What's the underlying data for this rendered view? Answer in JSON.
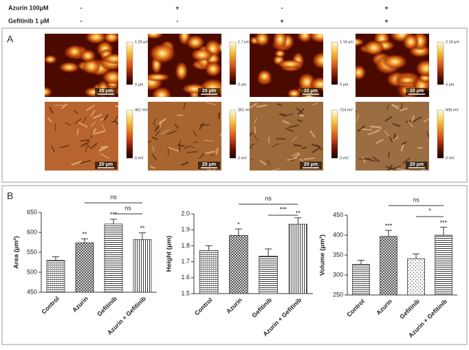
{
  "panel_a": {
    "label": "A",
    "treatments": [
      {
        "name": "Azurin 100μM",
        "signs": [
          "-",
          "+",
          "-",
          "+"
        ]
      },
      {
        "name": "Gefitinib 1 μM",
        "signs": [
          "-",
          "-",
          "+",
          "+"
        ]
      }
    ],
    "height_images": [
      {
        "max": "1.26 μm",
        "min": "0 μm",
        "scale": "20 μm"
      },
      {
        "max": "1.7 μm",
        "min": "0 μm",
        "scale": "20 μm"
      },
      {
        "max": "1.14 μm",
        "min": "0 μm",
        "scale": "20 μm"
      },
      {
        "max": "2.14 μm",
        "min": "0 μm",
        "scale": "20 μm"
      }
    ],
    "amplitude_images": [
      {
        "max": "461 mV",
        "min": "0 mV",
        "scale": "20 μm"
      },
      {
        "max": "261 mV",
        "min": "0 mV",
        "scale": "20 μm"
      },
      {
        "max": "724 mV",
        "min": "0 mV",
        "scale": "20 μm"
      },
      {
        "max": "608 mV",
        "min": "0 mV",
        "scale": "20 μm"
      }
    ]
  },
  "panel_b": {
    "label": "B"
  },
  "chart_data": [
    {
      "type": "bar",
      "ylabel": "Area (μm²)",
      "categories": [
        "Control",
        "Azurin",
        "Gefitinib",
        "Azurin + Gefitinib"
      ],
      "values": [
        530,
        574,
        621,
        582
      ],
      "errors": [
        9,
        10,
        12,
        17
      ],
      "significance": [
        null,
        "**",
        "***",
        "**"
      ],
      "comparisons": [
        {
          "between": [
            "Azurin",
            "Azurin + Gefitinib"
          ],
          "label": "ns"
        },
        {
          "between": [
            "Gefitinib",
            "Azurin + Gefitinib"
          ],
          "label": "ns"
        }
      ],
      "ylim": [
        450,
        650
      ],
      "yticks": [
        450,
        500,
        550,
        600,
        650
      ]
    },
    {
      "type": "bar",
      "ylabel": "Height (μm)",
      "categories": [
        "Control",
        "Azurin",
        "Gefitinib",
        "Azurin + Gefitinib"
      ],
      "values": [
        1.77,
        1.865,
        1.735,
        1.935
      ],
      "errors": [
        0.03,
        0.04,
        0.045,
        0.04
      ],
      "significance": [
        null,
        "*",
        null,
        "**"
      ],
      "comparisons": [
        {
          "between": [
            "Azurin",
            "Azurin + Gefitinib"
          ],
          "label": "ns"
        },
        {
          "between": [
            "Gefitinib",
            "Azurin + Gefitinib"
          ],
          "label": "***"
        }
      ],
      "ylim": [
        1.5,
        2.0
      ],
      "yticks": [
        1.5,
        1.6,
        1.7,
        1.8,
        1.9,
        {
          "value": 2,
          "label": "2.0"
        }
      ]
    },
    {
      "type": "bar",
      "ylabel": "Volume (μm³)",
      "categories": [
        "Control",
        "Azurin",
        "Gefitinib",
        "Azurin + Gefitinib"
      ],
      "values": [
        327,
        397,
        341,
        400
      ],
      "errors": [
        10,
        15,
        12,
        20
      ],
      "significance": [
        null,
        "***",
        null,
        "***"
      ],
      "comparisons": [
        {
          "between": [
            "Azurin",
            "Azurin + Gefitinib"
          ],
          "label": "ns"
        },
        {
          "between": [
            "Gefitinib",
            "Azurin + Gefitinib"
          ],
          "label": "*"
        }
      ],
      "ylim": [
        250,
        450
      ],
      "yticks": [
        250,
        300,
        350,
        400,
        450
      ]
    }
  ]
}
